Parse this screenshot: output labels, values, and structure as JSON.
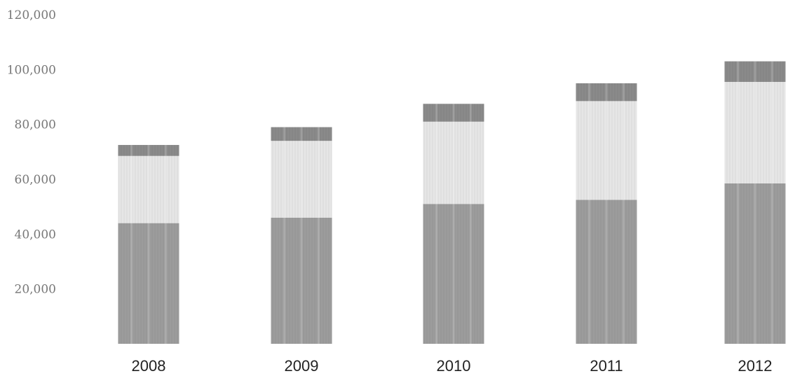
{
  "chart_data": {
    "type": "bar",
    "stacked": true,
    "title": "",
    "xlabel": "",
    "ylabel": "",
    "categories": [
      "2008",
      "2009",
      "2010",
      "2011",
      "2012"
    ],
    "ylim": [
      0,
      120000
    ],
    "yticks": [
      20000,
      40000,
      60000,
      80000,
      100000,
      120000
    ],
    "ytick_labels": [
      "20,000",
      "40,000",
      "60,000",
      "80,000",
      "100,000",
      "120,000"
    ],
    "grid": false,
    "legend": "none",
    "series": [
      {
        "values": [
          44000,
          46000,
          51000,
          52500,
          58500
        ],
        "color": "#9c9c9c"
      },
      {
        "values": [
          24500,
          28000,
          30000,
          36000,
          37000
        ],
        "color": "#e6e6e6"
      },
      {
        "values": [
          4000,
          5000,
          6500,
          6500,
          7500
        ],
        "color": "#8a8a8a"
      }
    ]
  }
}
